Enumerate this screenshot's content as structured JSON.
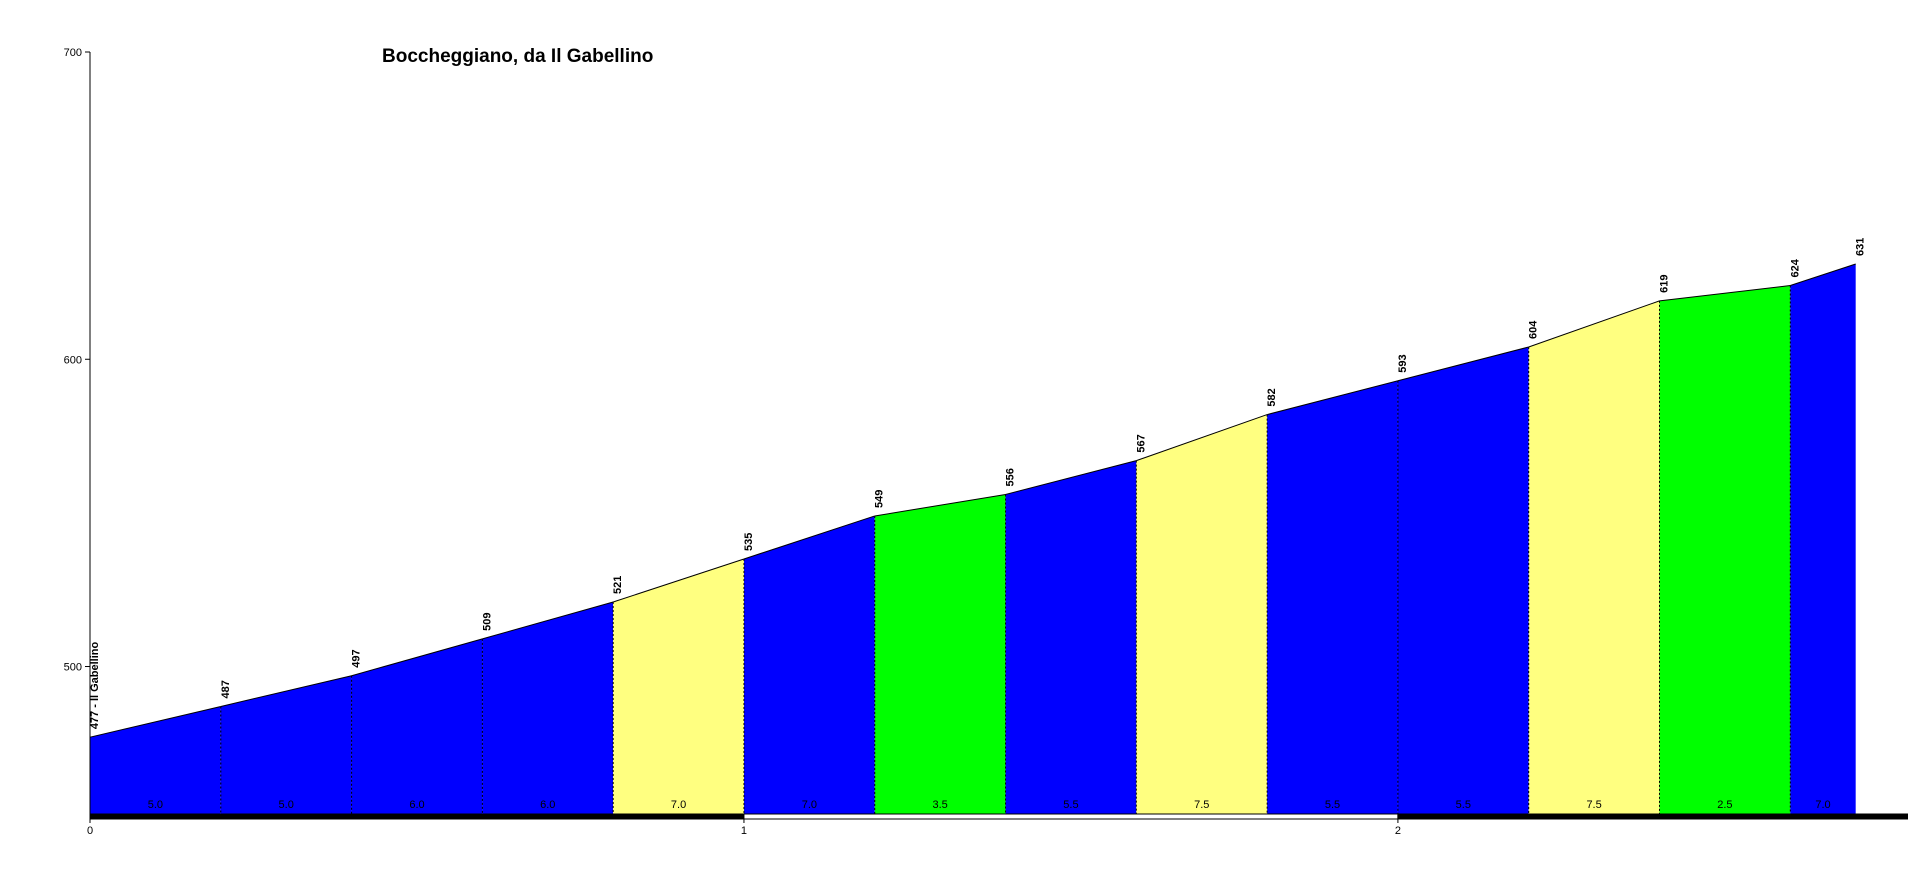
{
  "chart_data": {
    "type": "elevation-profile",
    "title": "Boccheggiano, da Il Gabellino",
    "x": [
      0,
      0.2,
      0.4,
      0.6,
      0.8,
      1.0,
      1.2,
      1.4,
      1.6,
      1.8,
      2.0,
      2.2,
      2.4,
      2.6,
      2.7
    ],
    "values": [
      477,
      487,
      497,
      509,
      521,
      535,
      549,
      556,
      567,
      582,
      593,
      604,
      619,
      624,
      631
    ],
    "value_labels": [
      "477 - Il Gabellino",
      "487",
      "497",
      "509",
      "521",
      "535",
      "549",
      "556",
      "567",
      "582",
      "593",
      "604",
      "619",
      "624",
      "631"
    ],
    "gradients": [
      5,
      5,
      6,
      6,
      7,
      7,
      3.5,
      5.5,
      7.5,
      5.5,
      5.5,
      7.5,
      2.5,
      7
    ],
    "gradient_labels": [
      "5.0",
      "5.0",
      "6.0",
      "6.0",
      "7.0",
      "7.0",
      "3.5",
      "5.5",
      "7.5",
      "5.5",
      "5.5",
      "7.5",
      "2.5",
      "7.0"
    ],
    "colors": [
      "#0000ff",
      "#0000ff",
      "#0000ff",
      "#0000ff",
      "#ffff80",
      "#0000ff",
      "#00ff00",
      "#0000ff",
      "#ffff80",
      "#0000ff",
      "#0000ff",
      "#ffff80",
      "#00ff00",
      "#0000ff"
    ],
    "xlim": [
      0,
      2.78
    ],
    "ylim": [
      452,
      700
    ],
    "xticks": [
      0,
      1,
      2
    ],
    "yticks": [
      500,
      600,
      700
    ]
  }
}
